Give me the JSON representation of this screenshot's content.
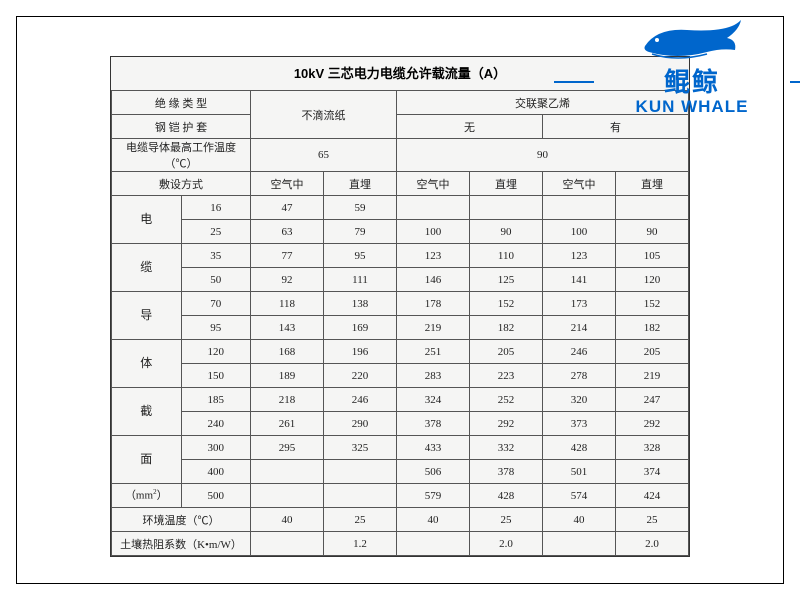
{
  "logo": {
    "cn": "鲲鲸",
    "en": "KUN WHALE"
  },
  "title": "10kV 三芯电力电缆允许载流量（A）",
  "header": {
    "insulation_label": "绝 缘 类 型",
    "paper": "不滴流纸",
    "xlpe": "交联聚乙烯",
    "armor_label": "钢 铠 护 套",
    "armor_none": "无",
    "armor_yes": "有",
    "temp_label": "电缆导体最高工作温度（℃）",
    "temp_paper": "65",
    "temp_xlpe": "90",
    "install_label": "敷设方式",
    "air": "空气中",
    "buried": "直埋"
  },
  "row_group_label": [
    "电",
    "缆",
    "导",
    "体",
    "截",
    "面",
    "（mm²）"
  ],
  "sizes": [
    "16",
    "25",
    "35",
    "50",
    "70",
    "95",
    "120",
    "150",
    "185",
    "240",
    "300",
    "400",
    "500"
  ],
  "data": [
    [
      "47",
      "59",
      "",
      "",
      "",
      ""
    ],
    [
      "63",
      "79",
      "100",
      "90",
      "100",
      "90"
    ],
    [
      "77",
      "95",
      "123",
      "110",
      "123",
      "105"
    ],
    [
      "92",
      "111",
      "146",
      "125",
      "141",
      "120"
    ],
    [
      "118",
      "138",
      "178",
      "152",
      "173",
      "152"
    ],
    [
      "143",
      "169",
      "219",
      "182",
      "214",
      "182"
    ],
    [
      "168",
      "196",
      "251",
      "205",
      "246",
      "205"
    ],
    [
      "189",
      "220",
      "283",
      "223",
      "278",
      "219"
    ],
    [
      "218",
      "246",
      "324",
      "252",
      "320",
      "247"
    ],
    [
      "261",
      "290",
      "378",
      "292",
      "373",
      "292"
    ],
    [
      "295",
      "325",
      "433",
      "332",
      "428",
      "328"
    ],
    [
      "",
      "",
      "506",
      "378",
      "501",
      "374"
    ],
    [
      "",
      "",
      "579",
      "428",
      "574",
      "424"
    ]
  ],
  "footer": {
    "env_temp_label": "环境温度（℃）",
    "env_temp": [
      "40",
      "25",
      "40",
      "25",
      "40",
      "25"
    ],
    "soil_label": "土壤热阻系数（K•m/W）",
    "soil": [
      "",
      "1.2",
      "",
      "2.0",
      "",
      "2.0"
    ]
  },
  "colors": {
    "border": "#555555",
    "bg": "#f5f5f4",
    "text": "#222222",
    "brand": "#0066cc"
  }
}
